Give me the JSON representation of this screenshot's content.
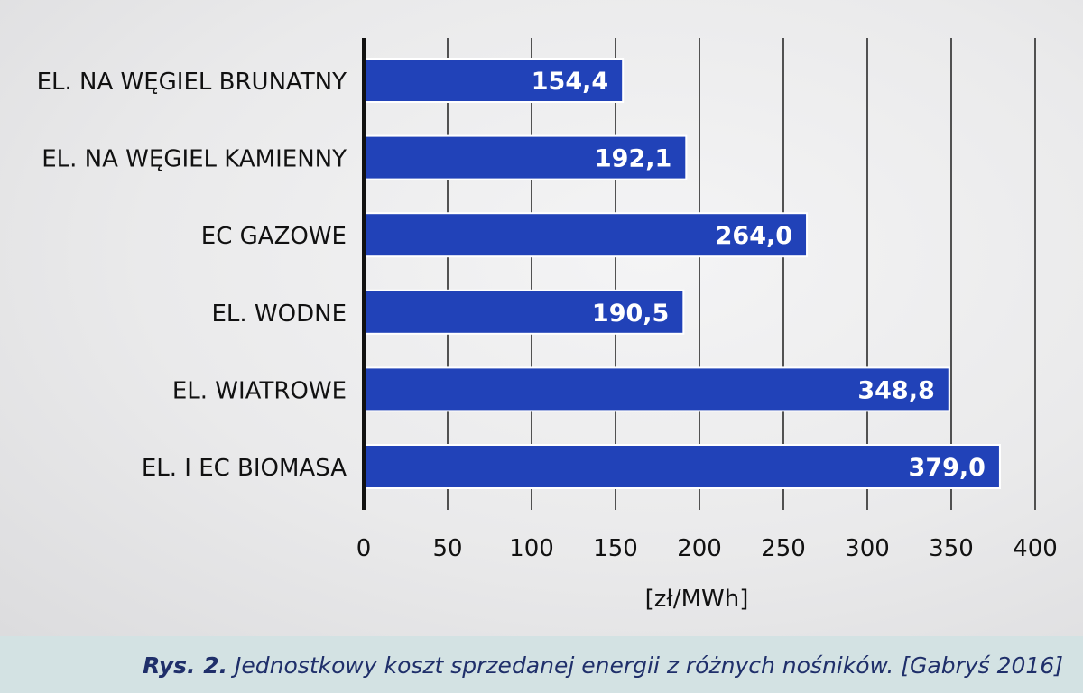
{
  "chart_data": {
    "type": "bar",
    "orientation": "horizontal",
    "categories": [
      "EL. NA WĘGIEL BRUNATNY",
      "EL. NA WĘGIEL KAMIENNY",
      "EC GAZOWE",
      "EL. WODNE",
      "EL. WIATROWE",
      "EL. I EC BIOMASA"
    ],
    "values": [
      154.4,
      192.1,
      264.0,
      190.5,
      348.8,
      379.0
    ],
    "value_labels": [
      "154,4",
      "192,1",
      "264,0",
      "190,5",
      "348,8",
      "379,0"
    ],
    "xticks": [
      0,
      50,
      100,
      150,
      200,
      250,
      300,
      350,
      400
    ],
    "xlim": [
      0,
      400
    ],
    "xlabel": "[zł/MWh]",
    "grid": "vertical",
    "legend": "none",
    "colors": {
      "bar": "#2142b8",
      "bar_edge": "#ffffff",
      "label_text": "#ffffff",
      "axis": "#111111",
      "grid": "#2a2a2a"
    }
  },
  "caption": {
    "prefix": "Rys. 2.",
    "text": " Jednostkowy koszt sprzedanej energii z różnych nośników. [Gabryś 2016]"
  }
}
